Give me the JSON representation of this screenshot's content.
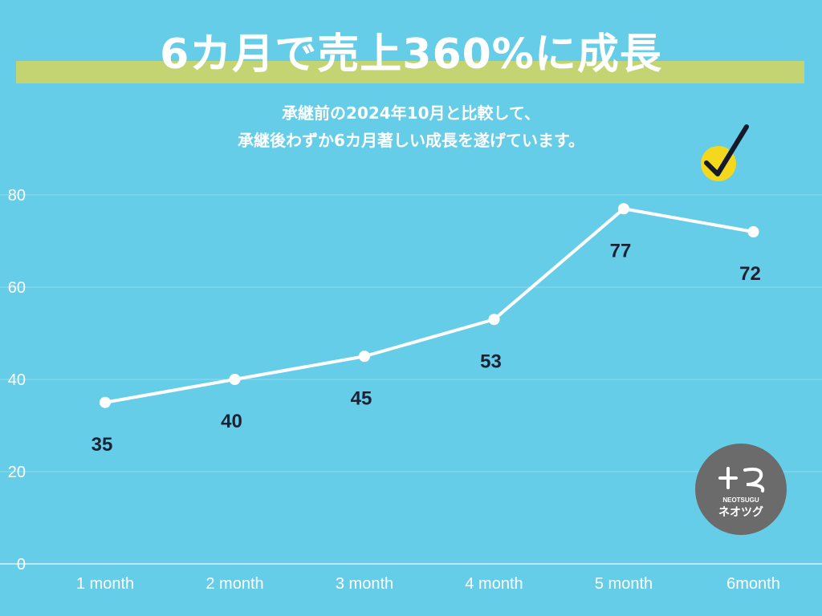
{
  "header": {
    "title": "6カ月で売上360%に成長",
    "subtitle_line1": "承継前の2024年10月と比較して、",
    "subtitle_line2": "承継後わずか6カ月著しい成長を遂げています。"
  },
  "badge": {
    "logo_text": "NEOTSUGU",
    "logo_katakana": "ネオツグ",
    "check_icon": "check-icon"
  },
  "colors": {
    "background": "#66cde8",
    "highlight": "#c5d472",
    "line": "#ffffff",
    "label": "#1a2234",
    "check_circle": "#f3d81e",
    "badge_bg": "#6b6b6b"
  },
  "chart_data": {
    "type": "line",
    "categories": [
      "1 month",
      "2 month",
      "3 month",
      "4 month",
      "5 month",
      "6month"
    ],
    "series": [
      {
        "values": [
          35,
          40,
          45,
          53,
          77,
          72
        ]
      }
    ],
    "data_labels": [
      "35",
      "40",
      "45",
      "53",
      "77",
      "72"
    ],
    "yticks": [
      "0",
      "20",
      "40",
      "60",
      "80"
    ],
    "ylim": [
      0,
      80
    ],
    "grid": true,
    "legend": "none"
  }
}
